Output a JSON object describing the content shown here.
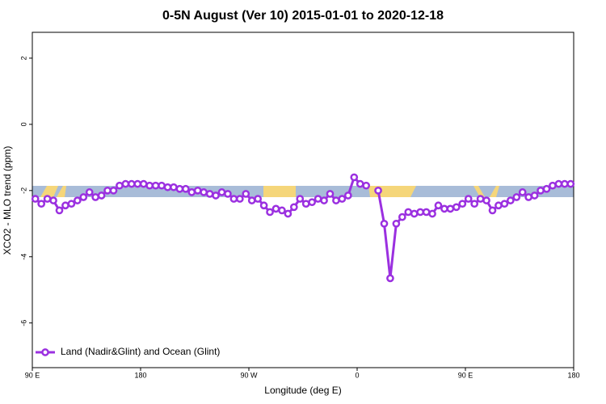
{
  "chart_data": {
    "type": "line",
    "title": "0-5N August (Ver 10)   2015-01-01 to 2020-12-18",
    "x_label": "Longitude (deg E)",
    "y_label": "XCO2 - MLO trend (ppm)",
    "xlim": [
      90,
      540
    ],
    "xticks": [
      {
        "value": 90,
        "label": "90 E"
      },
      180,
      {
        "value": 270,
        "label": "90 W"
      },
      {
        "value": 360,
        "label": "0"
      },
      {
        "value": 450,
        "label": "90 E"
      },
      {
        "value": 540,
        "label": "180"
      }
    ],
    "ylim": [
      -7.35,
      2.78
    ],
    "yticks": [
      2,
      0,
      -2,
      -4,
      -6
    ],
    "legend": "bottom-left",
    "x": [
      92.5,
      97.5,
      102.5,
      107.5,
      112.5,
      117.5,
      122.5,
      127.5,
      132.5,
      137.5,
      142.5,
      147.5,
      152.5,
      157.5,
      162.5,
      167.5,
      172.5,
      177.5,
      182.5,
      187.5,
      192.5,
      197.5,
      202.5,
      207.5,
      212.5,
      217.5,
      222.5,
      227.5,
      232.5,
      237.5,
      242.5,
      247.5,
      252.5,
      257.5,
      262.5,
      267.5,
      272.5,
      277.5,
      282.5,
      287.5,
      292.5,
      297.5,
      302.5,
      307.5,
      312.5,
      317.5,
      322.5,
      327.5,
      332.5,
      337.5,
      342.5,
      347.5,
      352.5,
      357.5,
      362.5,
      367.5,
      372.5,
      377.5,
      382.5,
      387.5,
      392.5,
      397.5,
      402.5,
      407.5,
      412.5,
      417.5,
      422.5,
      427.5,
      432.5,
      437.5,
      442.5,
      447.5,
      452.5,
      457.5,
      462.5,
      467.5,
      472.5,
      477.5,
      482.5,
      487.5,
      492.5,
      497.5,
      502.5,
      507.5,
      512.5,
      517.5,
      522.5,
      527.5,
      532.5,
      537.5
    ],
    "series": [
      {
        "name": "Land (Nadir&Glint) and Ocean (Glint)",
        "color": "#9b30e0",
        "values": [
          -2.25,
          -2.4,
          -2.25,
          -2.3,
          -2.6,
          -2.45,
          -2.4,
          -2.3,
          -2.2,
          -2.05,
          -2.2,
          -2.15,
          -2.0,
          -2.0,
          -1.85,
          -1.8,
          -1.8,
          -1.8,
          -1.8,
          -1.85,
          -1.85,
          -1.85,
          -1.9,
          -1.9,
          -1.95,
          -1.95,
          -2.05,
          -2.0,
          -2.05,
          -2.1,
          -2.15,
          -2.05,
          -2.1,
          -2.25,
          -2.25,
          -2.1,
          -2.3,
          -2.25,
          -2.45,
          -2.65,
          -2.55,
          -2.6,
          -2.7,
          -2.5,
          -2.25,
          -2.4,
          -2.35,
          -2.25,
          -2.3,
          -2.1,
          -2.3,
          -2.25,
          -2.15,
          -1.6,
          -1.8,
          -1.85,
          null,
          -2.0,
          -3.0,
          -4.65,
          -3.0,
          -2.8,
          -2.65,
          -2.7,
          -2.65,
          -2.65,
          -2.7,
          -2.45,
          -2.55,
          -2.55,
          -2.5,
          -2.4,
          -2.25,
          -2.4,
          -2.25,
          -2.3,
          -2.6,
          -2.45,
          -2.4,
          -2.3,
          -2.2,
          -2.05,
          -2.2,
          -2.15,
          -2.0,
          -1.95,
          -1.85,
          -1.8,
          -1.8,
          -1.8
        ]
      }
    ]
  }
}
